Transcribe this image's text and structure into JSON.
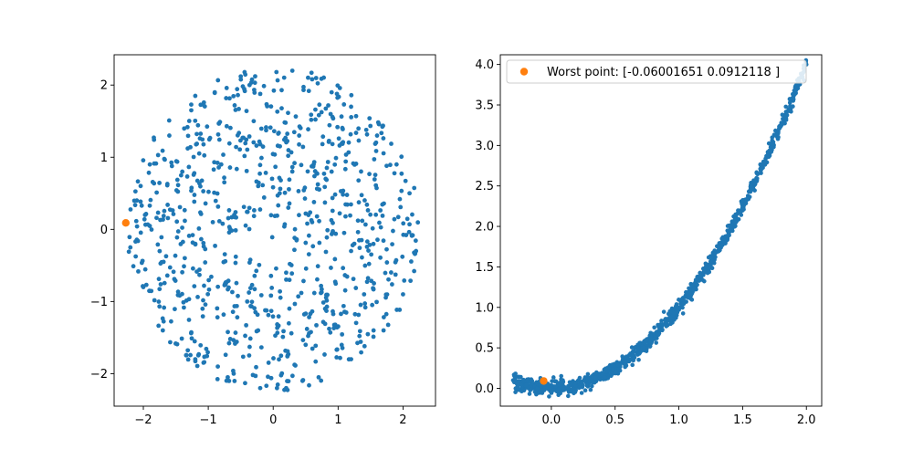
{
  "figure": {
    "background": "#ffffff"
  },
  "colors": {
    "series": "#1f77b4",
    "highlight": "#ff7f0e",
    "axis": "#000000"
  },
  "chart_data": [
    {
      "type": "scatter",
      "title": "",
      "xlabel": "",
      "ylabel": "",
      "xlim": [
        -2.45,
        2.5
      ],
      "ylim": [
        -2.45,
        2.42
      ],
      "xticks": [
        -2,
        -1,
        0,
        1,
        2
      ],
      "xtick_labels": [
        "−2",
        "−1",
        "0",
        "1",
        "2"
      ],
      "yticks": [
        -2,
        -1,
        0,
        1,
        2
      ],
      "ytick_labels": [
        "−2",
        "−1",
        "0",
        "1",
        "2"
      ],
      "grid": false,
      "legend": null,
      "series": [
        {
          "color": "#1f77b4",
          "distribution": "roughly uniform inside a disc centred near (0, 0), radius about 2.25",
          "points": [
            [
              0.05,
              2.18
            ],
            [
              -0.5,
              2.12
            ],
            [
              0.6,
              2.08
            ],
            [
              -1.2,
              1.85
            ],
            [
              1.2,
              1.7
            ],
            [
              -0.9,
              1.9
            ],
            [
              0.9,
              1.9
            ],
            [
              -1.6,
              1.3
            ],
            [
              1.6,
              1.3
            ],
            [
              -1.9,
              0.9
            ],
            [
              1.9,
              0.9
            ],
            [
              -2.1,
              0.4
            ],
            [
              2.1,
              0.5
            ],
            [
              -2.2,
              -0.25
            ],
            [
              2.2,
              -0.3
            ],
            [
              -2.0,
              -0.8
            ],
            [
              2.0,
              -0.9
            ],
            [
              -1.7,
              -1.4
            ],
            [
              1.7,
              -1.4
            ],
            [
              -1.2,
              -1.8
            ],
            [
              1.2,
              -1.8
            ],
            [
              -0.7,
              -2.05
            ],
            [
              0.7,
              -2.05
            ],
            [
              -0.2,
              -2.2
            ],
            [
              0.2,
              -2.2
            ],
            [
              -0.3,
              1.5
            ],
            [
              0.4,
              1.3
            ],
            [
              -0.8,
              0.9
            ],
            [
              0.9,
              0.8
            ],
            [
              0.1,
              0.5
            ],
            [
              -0.6,
              0.2
            ],
            [
              0.6,
              0.1
            ],
            [
              -1.2,
              -0.2
            ],
            [
              1.2,
              -0.3
            ],
            [
              0.2,
              -0.6
            ],
            [
              -0.4,
              -1.0
            ],
            [
              0.8,
              -1.1
            ],
            [
              1.4,
              -0.9
            ],
            [
              -1.4,
              0.8
            ],
            [
              0.5,
              -1.6
            ]
          ]
        },
        {
          "color": "#ff7f0e",
          "points": [
            [
              -2.27,
              0.09
            ]
          ]
        }
      ]
    },
    {
      "type": "scatter",
      "title": "",
      "xlabel": "",
      "ylabel": "",
      "xlim": [
        -0.4,
        2.12
      ],
      "ylim": [
        -0.22,
        4.12
      ],
      "xticks": [
        0.0,
        0.5,
        1.0,
        1.5,
        2.0
      ],
      "xtick_labels": [
        "0.0",
        "0.5",
        "1.0",
        "1.5",
        "2.0"
      ],
      "yticks": [
        0.0,
        0.5,
        1.0,
        1.5,
        2.0,
        2.5,
        3.0,
        3.5,
        4.0
      ],
      "ytick_labels": [
        "0.0",
        "0.5",
        "1.0",
        "1.5",
        "2.0",
        "2.5",
        "3.0",
        "3.5",
        "4.0"
      ],
      "grid": false,
      "legend": "top-left",
      "series": [
        {
          "color": "#1f77b4",
          "distribution": "dense band following y = x^2 (+/- 0.1) for x from -0.3 to 2.0",
          "points": [
            [
              -0.3,
              0.1
            ],
            [
              -0.2,
              0.05
            ],
            [
              -0.1,
              0.02
            ],
            [
              0.0,
              0.0
            ],
            [
              0.1,
              -0.02
            ],
            [
              0.2,
              0.05
            ],
            [
              0.3,
              0.1
            ],
            [
              0.4,
              0.16
            ],
            [
              0.5,
              0.25
            ],
            [
              0.6,
              0.37
            ],
            [
              0.7,
              0.49
            ],
            [
              0.8,
              0.65
            ],
            [
              0.9,
              0.81
            ],
            [
              1.0,
              1.0
            ],
            [
              1.1,
              1.21
            ],
            [
              1.2,
              1.44
            ],
            [
              1.3,
              1.69
            ],
            [
              1.4,
              1.96
            ],
            [
              1.5,
              2.25
            ],
            [
              1.6,
              2.56
            ],
            [
              1.7,
              2.89
            ],
            [
              1.8,
              3.24
            ],
            [
              1.9,
              3.61
            ],
            [
              2.0,
              4.0
            ]
          ]
        },
        {
          "name": "Worst point: [-0.06001651  0.0912118 ]",
          "color": "#ff7f0e",
          "points": [
            [
              -0.06,
              0.0912
            ]
          ]
        }
      ]
    }
  ]
}
